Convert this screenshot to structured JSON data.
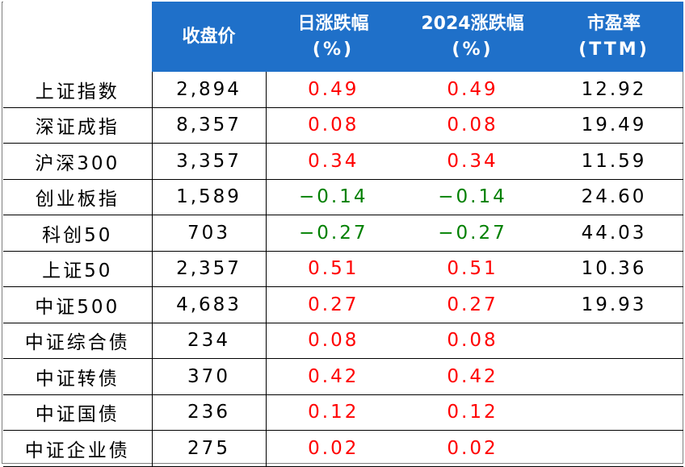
{
  "header": {
    "close": "收盘价",
    "daily_change": [
      "日涨跌幅",
      "(%)"
    ],
    "ytd_change": [
      "2024涨跌幅",
      "(%)"
    ],
    "pe": [
      "市盈率",
      "(TTM)"
    ]
  },
  "rows": [
    {
      "name": "上证指数",
      "close": "2,894",
      "daily": "0.49",
      "ytd": "0.49",
      "pe": "12.92"
    },
    {
      "name": "深证成指",
      "close": "8,357",
      "daily": "0.08",
      "ytd": "0.08",
      "pe": "19.49"
    },
    {
      "name": "沪深300",
      "close": "3,357",
      "daily": "0.34",
      "ytd": "0.34",
      "pe": "11.59"
    },
    {
      "name": "创业板指",
      "close": "1,589",
      "daily": "−0.14",
      "ytd": "−0.14",
      "pe": "24.60"
    },
    {
      "name": "科创50",
      "close": "703",
      "daily": "−0.27",
      "ytd": "−0.27",
      "pe": "44.03"
    },
    {
      "name": "上证50",
      "close": "2,357",
      "daily": "0.51",
      "ytd": "0.51",
      "pe": "10.36"
    },
    {
      "name": "中证500",
      "close": "4,683",
      "daily": "0.27",
      "ytd": "0.27",
      "pe": "19.93"
    },
    {
      "name": "中证综合债",
      "close": "234",
      "daily": "0.08",
      "ytd": "0.08",
      "pe": ""
    },
    {
      "name": "中证转债",
      "close": "370",
      "daily": "0.42",
      "ytd": "0.42",
      "pe": ""
    },
    {
      "name": "中证国债",
      "close": "236",
      "daily": "0.12",
      "ytd": "0.12",
      "pe": ""
    },
    {
      "name": "中证企业债",
      "close": "275",
      "daily": "0.02",
      "ytd": "0.02",
      "pe": ""
    }
  ],
  "colors": {
    "header_bg": "#1f70c9",
    "positive": "#ff0000",
    "negative": "#008000"
  }
}
